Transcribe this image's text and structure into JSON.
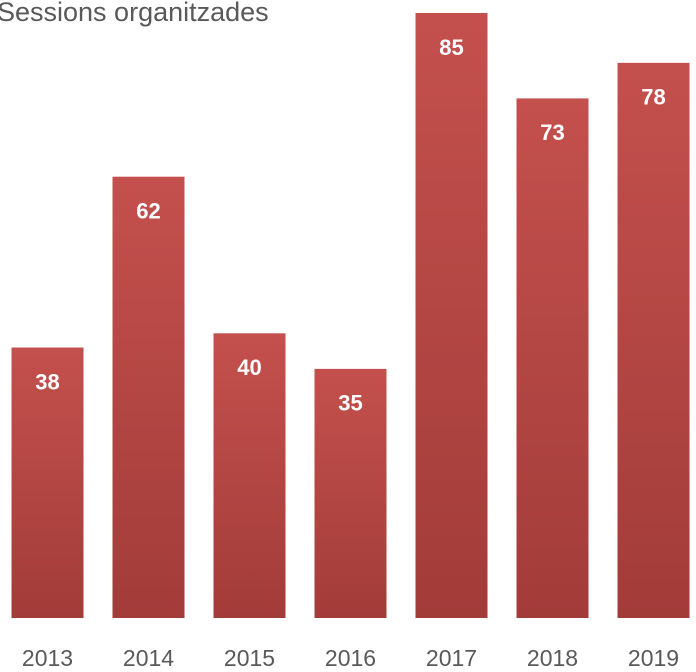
{
  "chart_data": {
    "type": "bar",
    "title": "Sessions organitzades",
    "categories": [
      "2013",
      "2014",
      "2015",
      "2016",
      "2017",
      "2018",
      "2019"
    ],
    "values": [
      38,
      62,
      40,
      35,
      85,
      73,
      78
    ],
    "color": "#c0504d",
    "ylim": [
      0,
      85
    ]
  }
}
